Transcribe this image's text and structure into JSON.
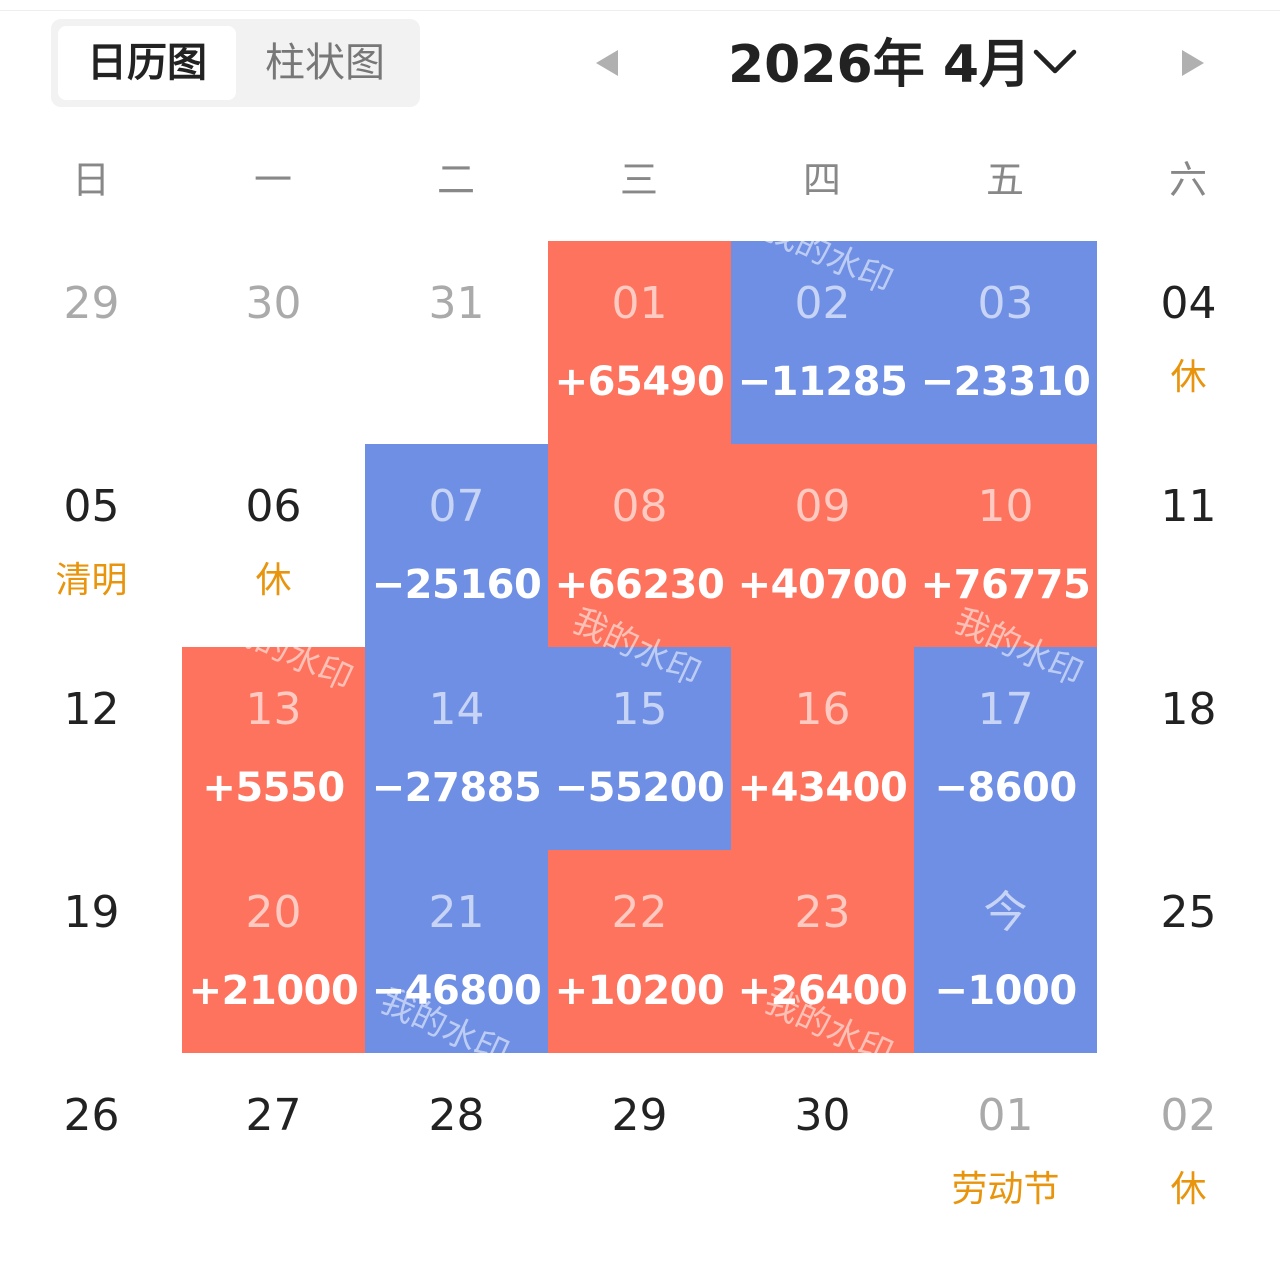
{
  "tabs": {
    "calendar": "日历图",
    "bar": "柱状图"
  },
  "header": {
    "title": "2026年 4月"
  },
  "weekdays": [
    "日",
    "一",
    "二",
    "三",
    "四",
    "五",
    "六"
  ],
  "colors": {
    "gain": "#fe735e",
    "loss": "#6e8fe4",
    "holiday": "#e8940c"
  },
  "watermark": "我的水印",
  "weeks": [
    [
      {
        "day": "29",
        "muted": true
      },
      {
        "day": "30",
        "muted": true
      },
      {
        "day": "31",
        "muted": true
      },
      {
        "day": "01",
        "amount": "+65490"
      },
      {
        "day": "02",
        "amount": "−11285"
      },
      {
        "day": "03",
        "amount": "−23310"
      },
      {
        "day": "04",
        "note": "休"
      }
    ],
    [
      {
        "day": "05",
        "note": "清明"
      },
      {
        "day": "06",
        "note": "休"
      },
      {
        "day": "07",
        "amount": "−25160"
      },
      {
        "day": "08",
        "amount": "+66230"
      },
      {
        "day": "09",
        "amount": "+40700"
      },
      {
        "day": "10",
        "amount": "+76775"
      },
      {
        "day": "11"
      }
    ],
    [
      {
        "day": "12"
      },
      {
        "day": "13",
        "amount": "+5550"
      },
      {
        "day": "14",
        "amount": "−27885"
      },
      {
        "day": "15",
        "amount": "−55200"
      },
      {
        "day": "16",
        "amount": "+43400"
      },
      {
        "day": "17",
        "amount": "−8600"
      },
      {
        "day": "18"
      }
    ],
    [
      {
        "day": "19"
      },
      {
        "day": "20",
        "amount": "+21000"
      },
      {
        "day": "21",
        "amount": "−46800"
      },
      {
        "day": "22",
        "amount": "+10200"
      },
      {
        "day": "23",
        "amount": "+26400"
      },
      {
        "day": "今",
        "amount": "−1000"
      },
      {
        "day": "25"
      }
    ],
    [
      {
        "day": "26"
      },
      {
        "day": "27"
      },
      {
        "day": "28"
      },
      {
        "day": "29"
      },
      {
        "day": "30"
      },
      {
        "day": "01",
        "muted": true,
        "note": "劳动节"
      },
      {
        "day": "02",
        "muted": true,
        "note": "休"
      }
    ]
  ]
}
